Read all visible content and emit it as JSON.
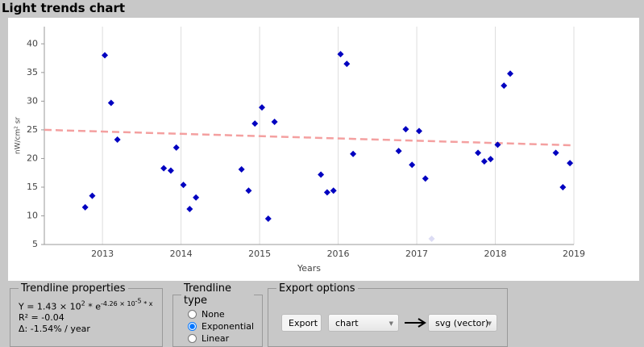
{
  "window": {
    "title": "Light trends chart"
  },
  "chart_data": {
    "type": "scatter",
    "x_label": "Years",
    "y_label": "nW/cm² sr",
    "xlim": [
      2012.26,
      2019
    ],
    "xticks": [
      2013,
      2014,
      2015,
      2016,
      2017,
      2018,
      2019
    ],
    "ylim": [
      5,
      43
    ],
    "yticks": [
      5,
      10,
      15,
      20,
      25,
      30,
      35,
      40
    ],
    "grid": "x",
    "series": [
      {
        "color": "#0000c0",
        "x": [
          2012.78,
          2012.87,
          2013.03,
          2013.11,
          2013.19,
          2013.78,
          2013.87,
          2013.94,
          2014.03,
          2014.11,
          2014.19,
          2014.77,
          2014.86,
          2014.94,
          2015.03,
          2015.11,
          2015.19,
          2015.78,
          2015.86,
          2015.94,
          2016.03,
          2016.11,
          2016.19,
          2016.77,
          2016.86,
          2016.94,
          2017.03,
          2017.11,
          2017.19,
          2017.78,
          2017.86,
          2017.94,
          2018.03,
          2018.11,
          2018.19,
          2018.77,
          2018.86,
          2018.95
        ],
        "values": [
          11.5,
          13.5,
          38,
          29.7,
          23.3,
          18.3,
          17.9,
          21.9,
          15.4,
          11.2,
          13.2,
          18.1,
          14.4,
          26.1,
          28.9,
          9.5,
          26.4,
          17.2,
          14.1,
          14.4,
          38.2,
          36.5,
          20.8,
          21.3,
          25.1,
          18.9,
          24.8,
          16.5,
          6.0,
          21.0,
          19.5,
          19.9,
          22.4,
          32.7,
          34.8,
          21.0,
          15.0,
          19.2
        ],
        "excluded": [
          28
        ],
        "excluded_color": "#dcdcf4"
      }
    ],
    "trendline": {
      "x": [
        2012.26,
        2019
      ],
      "values": [
        25.0,
        22.3
      ],
      "color": "#f4a0a0"
    }
  },
  "trendline_properties": {
    "legend": "Trendline properties",
    "formula": [
      "Y = 1.43 × 10",
      "2",
      " * e",
      "-4.26 × 10",
      "-5",
      " * x"
    ],
    "r2": "R² = -0.04",
    "delta": "Δ: -1.54% / year"
  },
  "trendline_type": {
    "legend": "Trendline type",
    "options": [
      "None",
      "Exponential",
      "Linear"
    ],
    "selected": 1
  },
  "export": {
    "legend": "Export options",
    "button": "Export",
    "source": "chart",
    "format": "svg (vector)"
  }
}
